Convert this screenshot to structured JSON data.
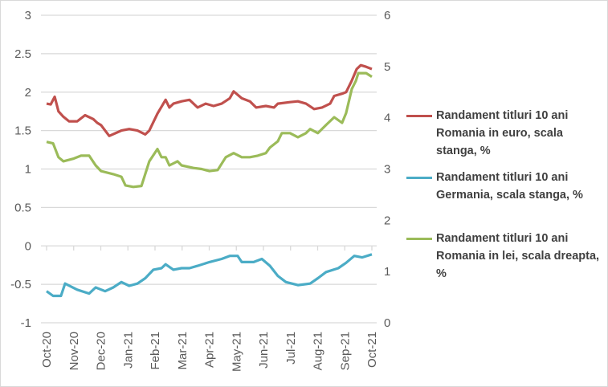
{
  "chart_data": {
    "type": "line",
    "title": "",
    "x_unit": "months since Oct-20",
    "x_ticks": [
      "Oct-20",
      "Nov-20",
      "Dec-20",
      "Jan-21",
      "Feb-21",
      "Mar-21",
      "Apr-21",
      "May-21",
      "Jun-21",
      "Jul-21",
      "Aug-21",
      "Sep-21",
      "Oct-21"
    ],
    "y_left": {
      "ylim": [
        -1,
        3
      ],
      "ticks": [
        "3",
        "2.5",
        "2",
        "1.5",
        "1",
        "0.5",
        "0",
        "-0.5",
        "-1"
      ],
      "tick_values": [
        3,
        2.5,
        2,
        1.5,
        1,
        0.5,
        0,
        -0.5,
        -1
      ]
    },
    "y_right": {
      "ylim": [
        0,
        6
      ],
      "ticks": [
        "6",
        "5",
        "4",
        "3",
        "2",
        "1",
        "0"
      ],
      "tick_values": [
        6,
        5,
        4,
        3,
        2,
        1,
        0
      ]
    },
    "grid": true,
    "legend_position": "right",
    "series": [
      {
        "name": "Randament titluri 10 ani Romania in euro, scala stanga, %",
        "axis": "left",
        "color": "#C0504D",
        "points": [
          [
            0,
            1.85
          ],
          [
            0.15,
            1.84
          ],
          [
            0.3,
            1.94
          ],
          [
            0.44,
            1.75
          ],
          [
            0.62,
            1.68
          ],
          [
            0.83,
            1.62
          ],
          [
            1.13,
            1.62
          ],
          [
            1.42,
            1.7
          ],
          [
            1.72,
            1.65
          ],
          [
            1.87,
            1.6
          ],
          [
            2.01,
            1.57
          ],
          [
            2.31,
            1.43
          ],
          [
            2.76,
            1.5
          ],
          [
            3.05,
            1.52
          ],
          [
            3.35,
            1.5
          ],
          [
            3.64,
            1.45
          ],
          [
            3.79,
            1.5
          ],
          [
            4.09,
            1.72
          ],
          [
            4.39,
            1.9
          ],
          [
            4.53,
            1.8
          ],
          [
            4.68,
            1.85
          ],
          [
            4.98,
            1.88
          ],
          [
            5.27,
            1.9
          ],
          [
            5.57,
            1.8
          ],
          [
            5.87,
            1.85
          ],
          [
            6.16,
            1.82
          ],
          [
            6.46,
            1.85
          ],
          [
            6.76,
            1.92
          ],
          [
            6.9,
            2.01
          ],
          [
            7.2,
            1.92
          ],
          [
            7.5,
            1.88
          ],
          [
            7.73,
            1.8
          ],
          [
            8.09,
            1.82
          ],
          [
            8.39,
            1.8
          ],
          [
            8.53,
            1.85
          ],
          [
            8.98,
            1.87
          ],
          [
            9.27,
            1.88
          ],
          [
            9.57,
            1.85
          ],
          [
            9.87,
            1.78
          ],
          [
            10.16,
            1.8
          ],
          [
            10.46,
            1.85
          ],
          [
            10.61,
            1.95
          ],
          [
            10.9,
            1.98
          ],
          [
            11.05,
            2.0
          ],
          [
            11.26,
            2.15
          ],
          [
            11.44,
            2.3
          ],
          [
            11.59,
            2.35
          ],
          [
            11.79,
            2.33
          ],
          [
            12,
            2.3
          ]
        ]
      },
      {
        "name": "Randament titluri 10 ani Germania, scala stanga, %",
        "axis": "left",
        "color": "#4BACC6",
        "points": [
          [
            0,
            -0.59
          ],
          [
            0.24,
            -0.65
          ],
          [
            0.53,
            -0.65
          ],
          [
            0.68,
            -0.49
          ],
          [
            1.13,
            -0.57
          ],
          [
            1.57,
            -0.62
          ],
          [
            1.81,
            -0.54
          ],
          [
            2.16,
            -0.59
          ],
          [
            2.46,
            -0.54
          ],
          [
            2.76,
            -0.47
          ],
          [
            3.05,
            -0.52
          ],
          [
            3.35,
            -0.49
          ],
          [
            3.64,
            -0.42
          ],
          [
            3.94,
            -0.31
          ],
          [
            4.24,
            -0.29
          ],
          [
            4.39,
            -0.24
          ],
          [
            4.68,
            -0.31
          ],
          [
            4.98,
            -0.29
          ],
          [
            5.27,
            -0.29
          ],
          [
            5.57,
            -0.26
          ],
          [
            6.01,
            -0.21
          ],
          [
            6.46,
            -0.17
          ],
          [
            6.76,
            -0.13
          ],
          [
            7.05,
            -0.13
          ],
          [
            7.2,
            -0.21
          ],
          [
            7.64,
            -0.21
          ],
          [
            7.94,
            -0.17
          ],
          [
            8.24,
            -0.26
          ],
          [
            8.53,
            -0.39
          ],
          [
            8.83,
            -0.47
          ],
          [
            9.27,
            -0.51
          ],
          [
            9.72,
            -0.49
          ],
          [
            10.01,
            -0.42
          ],
          [
            10.31,
            -0.34
          ],
          [
            10.76,
            -0.29
          ],
          [
            11.05,
            -0.22
          ],
          [
            11.35,
            -0.13
          ],
          [
            11.64,
            -0.15
          ],
          [
            12,
            -0.11
          ]
        ]
      },
      {
        "name": "Randament titluri 10 ani Romania in lei, scala dreapta, %",
        "axis": "right",
        "color": "#9BBB59",
        "points": [
          [
            0,
            3.53
          ],
          [
            0.24,
            3.5
          ],
          [
            0.44,
            3.23
          ],
          [
            0.62,
            3.15
          ],
          [
            0.98,
            3.2
          ],
          [
            1.27,
            3.26
          ],
          [
            1.57,
            3.26
          ],
          [
            1.81,
            3.07
          ],
          [
            2.01,
            2.96
          ],
          [
            2.46,
            2.9
          ],
          [
            2.76,
            2.85
          ],
          [
            2.91,
            2.68
          ],
          [
            3.2,
            2.65
          ],
          [
            3.5,
            2.67
          ],
          [
            3.79,
            3.15
          ],
          [
            4.09,
            3.39
          ],
          [
            4.24,
            3.23
          ],
          [
            4.39,
            3.23
          ],
          [
            4.53,
            3.07
          ],
          [
            4.83,
            3.15
          ],
          [
            4.98,
            3.07
          ],
          [
            5.42,
            3.02
          ],
          [
            5.72,
            3.0
          ],
          [
            6.01,
            2.96
          ],
          [
            6.31,
            2.98
          ],
          [
            6.61,
            3.23
          ],
          [
            6.9,
            3.31
          ],
          [
            7.2,
            3.23
          ],
          [
            7.5,
            3.23
          ],
          [
            7.79,
            3.26
          ],
          [
            8.09,
            3.31
          ],
          [
            8.24,
            3.42
          ],
          [
            8.53,
            3.54
          ],
          [
            8.68,
            3.7
          ],
          [
            8.98,
            3.7
          ],
          [
            9.27,
            3.62
          ],
          [
            9.57,
            3.7
          ],
          [
            9.72,
            3.78
          ],
          [
            10.01,
            3.7
          ],
          [
            10.31,
            3.86
          ],
          [
            10.61,
            4.01
          ],
          [
            10.9,
            3.9
          ],
          [
            11.05,
            4.09
          ],
          [
            11.26,
            4.56
          ],
          [
            11.41,
            4.72
          ],
          [
            11.5,
            4.87
          ],
          [
            11.79,
            4.87
          ],
          [
            12,
            4.8
          ]
        ]
      }
    ]
  }
}
